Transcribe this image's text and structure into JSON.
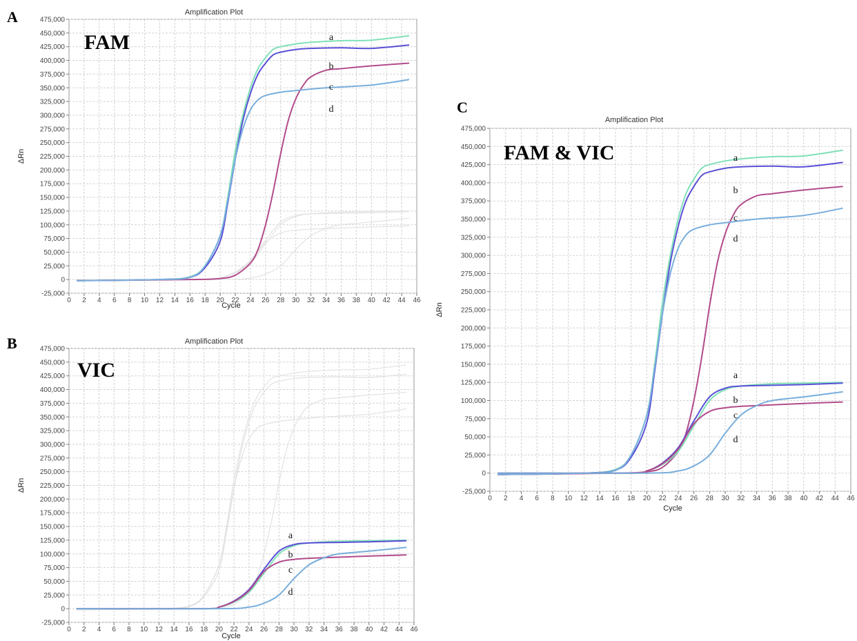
{
  "figure": {
    "panels": [
      {
        "letter": "A",
        "tag": "FAM"
      },
      {
        "letter": "B",
        "tag": "VIC"
      },
      {
        "letter": "C",
        "tag": "FAM & VIC"
      }
    ]
  },
  "colors": {
    "a": "#7fe0b8",
    "b": "#5a4fd6",
    "c": "#b24b8a",
    "d": "#78aedc",
    "faded": "#e2e2e2"
  },
  "chart_data": [
    {
      "type": "line",
      "title": "Amplification Plot",
      "xlabel": "Cycle",
      "ylabel": "ΔRn",
      "xlim": [
        0,
        46
      ],
      "ylim": [
        -25000,
        475000
      ],
      "xticks": [
        "0",
        "2",
        "4",
        "6",
        "8",
        "10",
        "12",
        "14",
        "16",
        "18",
        "20",
        "22",
        "24",
        "26",
        "28",
        "30",
        "32",
        "34",
        "36",
        "38",
        "40",
        "42",
        "44",
        "46"
      ],
      "yticks": [
        "-25,000",
        "0",
        "25,000",
        "50,000",
        "75,000",
        "100,000",
        "125,000",
        "150,000",
        "175,000",
        "200,000",
        "225,000",
        "250,000",
        "275,000",
        "300,000",
        "325,000",
        "350,000",
        "375,000",
        "400,000",
        "425,000",
        "450,000",
        "475,000"
      ],
      "grid": true,
      "series": [
        {
          "name": "a",
          "role": "FAM",
          "x": [
            1,
            12,
            16,
            18,
            20,
            21,
            22,
            23,
            24,
            25,
            26,
            27,
            28,
            30,
            32,
            36,
            40,
            45
          ],
          "values": [
            -2000,
            0,
            5000,
            25000,
            80000,
            150000,
            235000,
            300000,
            350000,
            385000,
            405000,
            420000,
            425000,
            430000,
            433000,
            436000,
            437000,
            445000
          ]
        },
        {
          "name": "b",
          "role": "FAM",
          "x": [
            1,
            12,
            16,
            18,
            20,
            21,
            22,
            23,
            24,
            25,
            26,
            27,
            28,
            30,
            32,
            36,
            40,
            45
          ],
          "values": [
            -2000,
            0,
            4000,
            22000,
            70000,
            140000,
            220000,
            290000,
            340000,
            375000,
            395000,
            410000,
            415000,
            420000,
            422000,
            423000,
            422000,
            428000
          ]
        },
        {
          "name": "c",
          "role": "FAM",
          "x": [
            1,
            16,
            20,
            22,
            24,
            25,
            26,
            27,
            28,
            29,
            30,
            31,
            32,
            34,
            36,
            40,
            45
          ],
          "values": [
            -2000,
            0,
            2000,
            8000,
            30000,
            55000,
            100000,
            160000,
            230000,
            290000,
            330000,
            355000,
            370000,
            382000,
            385000,
            390000,
            395000
          ]
        },
        {
          "name": "d",
          "role": "FAM",
          "x": [
            1,
            12,
            16,
            18,
            20,
            21,
            22,
            23,
            24,
            25,
            26,
            28,
            30,
            34,
            40,
            45
          ],
          "values": [
            -2000,
            0,
            4000,
            25000,
            80000,
            145000,
            220000,
            275000,
            310000,
            328000,
            336000,
            342000,
            345000,
            350000,
            355000,
            365000
          ]
        },
        {
          "name": "a",
          "role": "VIC (faded)",
          "x": [
            1,
            18,
            20,
            22,
            24,
            26,
            28,
            30,
            32,
            36,
            40,
            45
          ],
          "values": [
            0,
            0,
            3000,
            12000,
            30000,
            65000,
            100000,
            115000,
            120000,
            123000,
            124000,
            125000
          ]
        },
        {
          "name": "b",
          "role": "VIC (faded)",
          "x": [
            1,
            18,
            20,
            22,
            24,
            26,
            28,
            30,
            32,
            36,
            40,
            45
          ],
          "values": [
            0,
            0,
            3000,
            14000,
            35000,
            72000,
            105000,
            117000,
            120000,
            121000,
            122000,
            124000
          ]
        },
        {
          "name": "c",
          "role": "VIC (faded)",
          "x": [
            1,
            18,
            20,
            22,
            24,
            26,
            28,
            30,
            32,
            36,
            40,
            45
          ],
          "values": [
            0,
            0,
            3000,
            13000,
            33000,
            68000,
            85000,
            90000,
            92000,
            94000,
            96000,
            98000
          ]
        },
        {
          "name": "d",
          "role": "VIC (faded)",
          "x": [
            1,
            20,
            24,
            26,
            28,
            30,
            32,
            34,
            36,
            40,
            45
          ],
          "values": [
            0,
            0,
            3000,
            10000,
            25000,
            55000,
            80000,
            93000,
            100000,
            105000,
            112000
          ]
        }
      ],
      "annotations": [
        "a",
        "b",
        "c",
        "d"
      ]
    },
    {
      "type": "line",
      "title": "Amplification Plot",
      "xlabel": "Cycle",
      "ylabel": "ΔRn",
      "xlim": [
        0,
        46
      ],
      "ylim": [
        -25000,
        475000
      ],
      "xticks": [
        "0",
        "2",
        "4",
        "6",
        "8",
        "10",
        "12",
        "14",
        "16",
        "18",
        "20",
        "22",
        "24",
        "26",
        "28",
        "30",
        "32",
        "34",
        "36",
        "38",
        "40",
        "42",
        "44",
        "46"
      ],
      "yticks": [
        "-25,000",
        "0",
        "25,000",
        "50,000",
        "75,000",
        "100,000",
        "125,000",
        "150,000",
        "175,000",
        "200,000",
        "225,000",
        "250,000",
        "275,000",
        "300,000",
        "325,000",
        "350,000",
        "375,000",
        "400,000",
        "425,000",
        "450,000",
        "475,000"
      ],
      "grid": true,
      "series": [
        {
          "name": "a",
          "role": "VIC",
          "x": [
            1,
            18,
            20,
            22,
            24,
            26,
            28,
            30,
            32,
            36,
            40,
            45
          ],
          "values": [
            0,
            0,
            3000,
            12000,
            30000,
            65000,
            100000,
            115000,
            120000,
            123000,
            124000,
            125000
          ]
        },
        {
          "name": "b",
          "role": "VIC",
          "x": [
            1,
            18,
            20,
            22,
            24,
            26,
            28,
            30,
            32,
            36,
            40,
            45
          ],
          "values": [
            0,
            0,
            3000,
            14000,
            35000,
            72000,
            105000,
            117000,
            120000,
            121000,
            122000,
            124000
          ]
        },
        {
          "name": "c",
          "role": "VIC",
          "x": [
            1,
            18,
            20,
            22,
            24,
            26,
            28,
            30,
            32,
            36,
            40,
            45
          ],
          "values": [
            0,
            0,
            3000,
            13000,
            33000,
            68000,
            85000,
            90000,
            92000,
            94000,
            96000,
            98000
          ]
        },
        {
          "name": "d",
          "role": "VIC",
          "x": [
            1,
            20,
            24,
            26,
            28,
            30,
            32,
            34,
            36,
            40,
            45
          ],
          "values": [
            0,
            0,
            3000,
            10000,
            25000,
            55000,
            80000,
            93000,
            100000,
            105000,
            112000
          ]
        },
        {
          "name": "a",
          "role": "FAM (faded)",
          "x": [
            1,
            12,
            16,
            18,
            20,
            21,
            22,
            23,
            24,
            25,
            26,
            27,
            28,
            30,
            32,
            36,
            40,
            45
          ],
          "values": [
            -2000,
            0,
            5000,
            25000,
            80000,
            150000,
            235000,
            300000,
            350000,
            385000,
            405000,
            420000,
            425000,
            430000,
            433000,
            436000,
            437000,
            445000
          ]
        },
        {
          "name": "b",
          "role": "FAM (faded)",
          "x": [
            1,
            12,
            16,
            18,
            20,
            21,
            22,
            23,
            24,
            25,
            26,
            27,
            28,
            30,
            32,
            36,
            40,
            45
          ],
          "values": [
            -2000,
            0,
            4000,
            22000,
            70000,
            140000,
            220000,
            290000,
            340000,
            375000,
            395000,
            410000,
            415000,
            420000,
            422000,
            423000,
            422000,
            428000
          ]
        },
        {
          "name": "c",
          "role": "FAM (faded)",
          "x": [
            1,
            16,
            20,
            22,
            24,
            25,
            26,
            27,
            28,
            29,
            30,
            31,
            32,
            34,
            36,
            40,
            45
          ],
          "values": [
            -2000,
            0,
            2000,
            8000,
            30000,
            55000,
            100000,
            160000,
            230000,
            290000,
            330000,
            355000,
            370000,
            382000,
            385000,
            390000,
            395000
          ]
        },
        {
          "name": "d",
          "role": "FAM (faded)",
          "x": [
            1,
            12,
            16,
            18,
            20,
            21,
            22,
            23,
            24,
            25,
            26,
            28,
            30,
            34,
            40,
            45
          ],
          "values": [
            -2000,
            0,
            4000,
            25000,
            80000,
            145000,
            220000,
            275000,
            310000,
            328000,
            336000,
            342000,
            345000,
            350000,
            355000,
            365000
          ]
        }
      ],
      "annotations": [
        "a",
        "b",
        "c",
        "d"
      ]
    },
    {
      "type": "line",
      "title": "Amplification Plot",
      "xlabel": "Cycle",
      "ylabel": "ΔRn",
      "xlim": [
        0,
        46
      ],
      "ylim": [
        -25000,
        475000
      ],
      "xticks": [
        "0",
        "2",
        "4",
        "6",
        "8",
        "10",
        "12",
        "14",
        "16",
        "18",
        "20",
        "22",
        "24",
        "26",
        "28",
        "30",
        "32",
        "34",
        "36",
        "38",
        "40",
        "42",
        "44",
        "46"
      ],
      "yticks": [
        "-25,000",
        "0",
        "25,000",
        "50,000",
        "75,000",
        "100,000",
        "125,000",
        "150,000",
        "175,000",
        "200,000",
        "225,000",
        "250,000",
        "275,000",
        "300,000",
        "325,000",
        "350,000",
        "375,000",
        "400,000",
        "425,000",
        "450,000",
        "475,000"
      ],
      "grid": true,
      "series": [
        {
          "name": "a",
          "role": "FAM",
          "x": [
            1,
            12,
            16,
            18,
            20,
            21,
            22,
            23,
            24,
            25,
            26,
            27,
            28,
            30,
            32,
            36,
            40,
            45
          ],
          "values": [
            -2000,
            0,
            5000,
            25000,
            80000,
            150000,
            235000,
            300000,
            350000,
            385000,
            405000,
            420000,
            425000,
            430000,
            433000,
            436000,
            437000,
            445000
          ]
        },
        {
          "name": "b",
          "role": "FAM",
          "x": [
            1,
            12,
            16,
            18,
            20,
            21,
            22,
            23,
            24,
            25,
            26,
            27,
            28,
            30,
            32,
            36,
            40,
            45
          ],
          "values": [
            -2000,
            0,
            4000,
            22000,
            70000,
            140000,
            220000,
            290000,
            340000,
            375000,
            395000,
            410000,
            415000,
            420000,
            422000,
            423000,
            422000,
            428000
          ]
        },
        {
          "name": "c",
          "role": "FAM",
          "x": [
            1,
            16,
            20,
            22,
            24,
            25,
            26,
            27,
            28,
            29,
            30,
            31,
            32,
            34,
            36,
            40,
            45
          ],
          "values": [
            -2000,
            0,
            2000,
            8000,
            30000,
            55000,
            100000,
            160000,
            230000,
            290000,
            330000,
            355000,
            370000,
            382000,
            385000,
            390000,
            395000
          ]
        },
        {
          "name": "d",
          "role": "FAM",
          "x": [
            1,
            12,
            16,
            18,
            20,
            21,
            22,
            23,
            24,
            25,
            26,
            28,
            30,
            34,
            40,
            45
          ],
          "values": [
            -2000,
            0,
            4000,
            25000,
            80000,
            145000,
            220000,
            275000,
            310000,
            328000,
            336000,
            342000,
            345000,
            350000,
            355000,
            365000
          ]
        },
        {
          "name": "a",
          "role": "VIC",
          "x": [
            1,
            18,
            20,
            22,
            24,
            26,
            28,
            30,
            32,
            36,
            40,
            45
          ],
          "values": [
            0,
            0,
            3000,
            12000,
            30000,
            65000,
            100000,
            115000,
            120000,
            123000,
            124000,
            125000
          ]
        },
        {
          "name": "b",
          "role": "VIC",
          "x": [
            1,
            18,
            20,
            22,
            24,
            26,
            28,
            30,
            32,
            36,
            40,
            45
          ],
          "values": [
            0,
            0,
            3000,
            14000,
            35000,
            72000,
            105000,
            117000,
            120000,
            121000,
            122000,
            124000
          ]
        },
        {
          "name": "c",
          "role": "VIC",
          "x": [
            1,
            18,
            20,
            22,
            24,
            26,
            28,
            30,
            32,
            36,
            40,
            45
          ],
          "values": [
            0,
            0,
            3000,
            13000,
            33000,
            68000,
            85000,
            90000,
            92000,
            94000,
            96000,
            98000
          ]
        },
        {
          "name": "d",
          "role": "VIC",
          "x": [
            1,
            20,
            24,
            26,
            28,
            30,
            32,
            34,
            36,
            40,
            45
          ],
          "values": [
            0,
            0,
            3000,
            10000,
            25000,
            55000,
            80000,
            93000,
            100000,
            105000,
            112000
          ]
        }
      ],
      "annotations": [
        "a",
        "b",
        "c",
        "d",
        "a",
        "b",
        "c",
        "d"
      ]
    }
  ]
}
